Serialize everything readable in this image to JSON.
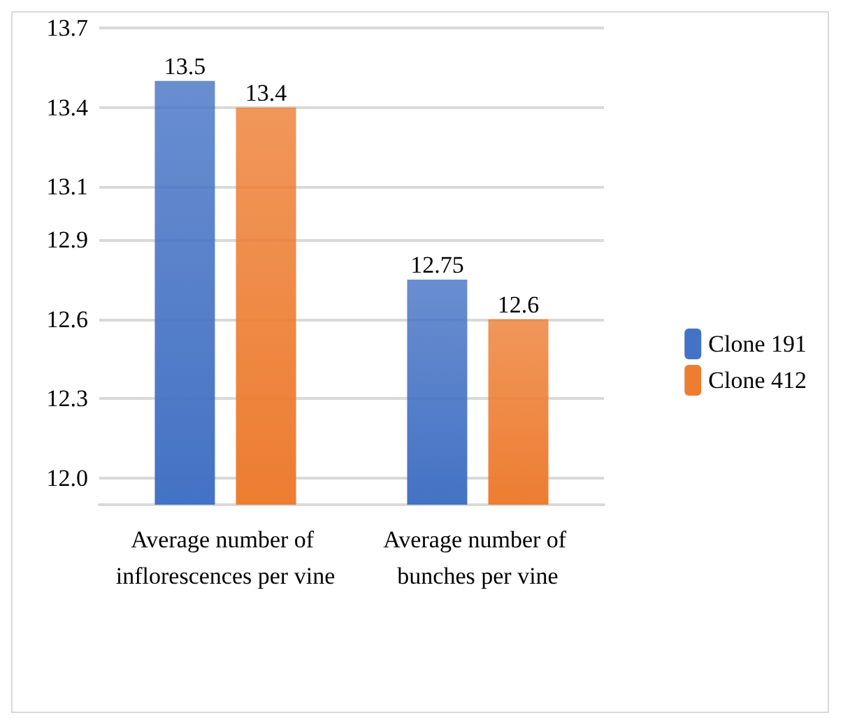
{
  "chart_data": {
    "type": "bar",
    "categories": [
      "Average number of inflorescences per vine",
      "Average number of bunches per vine"
    ],
    "series": [
      {
        "name": "Clone 191",
        "color": "#4472c4",
        "values": [
          13.5,
          12.75
        ]
      },
      {
        "name": "Clone 412",
        "color": "#ed7d31",
        "values": [
          13.4,
          12.6
        ]
      }
    ],
    "ylim": [
      11.9,
      13.7
    ],
    "yticks": [
      {
        "value": 12.0,
        "label": "12.0"
      },
      12.3,
      12.6,
      12.9,
      13.1,
      13.4,
      13.7
    ],
    "grid": "y",
    "legend": "right",
    "data_labels": true
  }
}
